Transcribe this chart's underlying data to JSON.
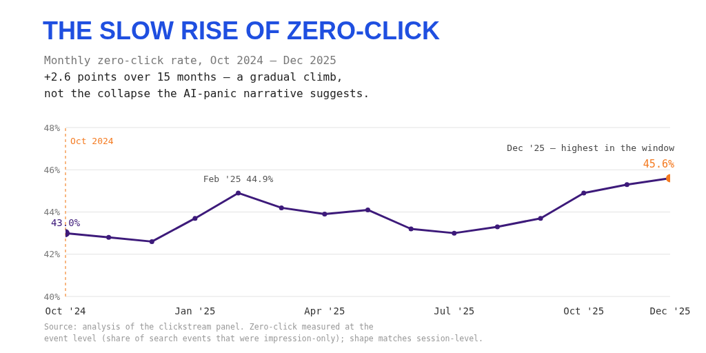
{
  "chart_data": {
    "type": "line",
    "title": "THE SLOW RISE OF ZERO-CLICK",
    "subtitle": "Monthly zero-click rate, Oct 2024 – Dec 2025\n+2.6 points over 15 months — a gradual climb,\nnot the collapse the AI-panic narrative suggests.",
    "categories": [
      "Oct '24",
      null,
      null,
      "Jan '25",
      null,
      null,
      "Apr '25",
      null,
      null,
      "Jul '25",
      null,
      null,
      "Oct '25",
      null,
      "Dec '25"
    ],
    "series": [
      {
        "color": "#3d1a7a",
        "colors": [
          "#3d1a7a",
          "#3d1a7a",
          "#3d1a7a",
          "#3d1a7a",
          "#3d1a7a",
          "#3d1a7a",
          "#3d1a7a",
          "#3d1a7a",
          "#3d1a7a",
          "#3d1a7a",
          "#3d1a7a",
          "#3d1a7a",
          "#3d1a7a",
          "#3d1a7a",
          "#f47a20"
        ],
        "values": [
          43.0,
          42.8,
          42.6,
          43.7,
          44.9,
          44.2,
          43.9,
          44.1,
          43.2,
          43.0,
          43.3,
          43.7,
          44.9,
          45.3,
          45.6
        ]
      }
    ],
    "ylim": [
      40,
      48
    ],
    "yticks": [
      {
        "value": 40,
        "label": "40%"
      },
      {
        "value": 42,
        "label": "42%"
      },
      {
        "value": 44,
        "label": "44%"
      },
      {
        "value": 46,
        "label": "46%"
      },
      {
        "value": 48,
        "label": "48%"
      }
    ],
    "grid": "y",
    "marker": "circle",
    "line_style": "solid",
    "ref_lines": [
      {
        "axis": "x",
        "value": "Oct '24",
        "label": "Oct 2024",
        "color": "#f5a05a",
        "line_style": "dashed"
      }
    ],
    "annotations": [
      {
        "text": "43.0%",
        "x": "Oct '24",
        "y": 43.0
      },
      {
        "text": "Feb '25 44.9%",
        "y": 44.9
      },
      {
        "text": "Dec '25 — highest in the window",
        "x": "Dec '25",
        "y": 45.6
      },
      {
        "text": "45.6%",
        "x": "Dec '25",
        "y": 45.6
      },
      "Source: analysis of the clickstream panel. Zero-click measured at the\nevent level (share of search events that were impression-only); shape matches session-level."
    ]
  }
}
